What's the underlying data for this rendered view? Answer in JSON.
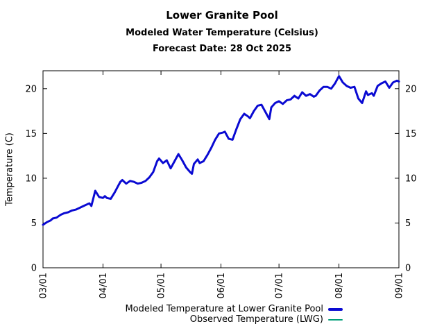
{
  "header": {
    "title": "Lower Granite Pool",
    "subtitle": "Modeled Water Temperature (Celsius)",
    "forecast": "Forecast Date: 28 Oct 2025"
  },
  "colors": {
    "modeled_line": "#0a0ad2",
    "observed_line": "#009e78",
    "axis": "#000000",
    "background": "#ffffff"
  },
  "legend": [
    {
      "label": "Modeled Temperature at Lower Granite Pool",
      "color": "#0a0ad2",
      "style": "thick"
    },
    {
      "label": "Observed Temperature (LWG)",
      "color": "#009e78",
      "style": "thin"
    }
  ],
  "chart_data": {
    "type": "line",
    "title": "Lower Granite Pool",
    "subtitle": "Modeled Water Temperature (Celsius)",
    "annotation": "Forecast Date: 28 Oct 2025",
    "xlabel": "",
    "ylabel": "Temperature (C)",
    "ylim": [
      0,
      22
    ],
    "y_ticks": [
      0,
      5,
      10,
      15,
      20
    ],
    "x_tick_labels": [
      "03/01",
      "04/01",
      "05/01",
      "06/01",
      "07/01",
      "08/01",
      "09/01"
    ],
    "grid": false,
    "legend_position": "bottom-right",
    "dates": [
      "03/01",
      "03/03",
      "03/05",
      "03/06",
      "03/08",
      "03/10",
      "03/12",
      "03/14",
      "03/16",
      "03/18",
      "03/20",
      "03/22",
      "03/24",
      "03/25",
      "03/26",
      "03/28",
      "03/30",
      "04/01",
      "04/02",
      "04/03",
      "04/05",
      "04/07",
      "04/09",
      "04/10",
      "04/11",
      "04/13",
      "04/15",
      "04/17",
      "04/19",
      "04/21",
      "04/23",
      "04/25",
      "04/27",
      "04/28",
      "04/29",
      "04/30",
      "05/02",
      "05/04",
      "05/06",
      "05/08",
      "05/10",
      "05/12",
      "05/14",
      "05/16",
      "05/17",
      "05/18",
      "05/20",
      "05/21",
      "05/23",
      "05/25",
      "05/27",
      "05/29",
      "05/31",
      "06/02",
      "06/03",
      "06/05",
      "06/07",
      "06/09",
      "06/11",
      "06/13",
      "06/15",
      "06/16",
      "06/18",
      "06/20",
      "06/22",
      "06/24",
      "06/26",
      "06/27",
      "06/29",
      "07/01",
      "07/03",
      "07/05",
      "07/07",
      "07/09",
      "07/11",
      "07/13",
      "07/15",
      "07/17",
      "07/19",
      "07/20",
      "07/22",
      "07/24",
      "07/26",
      "07/28",
      "07/30",
      "08/01",
      "08/03",
      "08/05",
      "08/07",
      "08/09",
      "08/11",
      "08/13",
      "08/15",
      "08/16",
      "08/18",
      "08/19",
      "08/21",
      "08/23",
      "08/25",
      "08/27",
      "08/29",
      "08/31",
      "09/01"
    ],
    "series": [
      {
        "id": "modeled",
        "name": "Modeled Temperature at Lower Granite Pool",
        "color": "#0a0ad2",
        "width": 3,
        "values": [
          4.8,
          5.1,
          5.3,
          5.5,
          5.6,
          5.9,
          6.1,
          6.2,
          6.4,
          6.5,
          6.7,
          6.9,
          7.1,
          7.2,
          6.9,
          8.6,
          7.9,
          7.8,
          8.0,
          7.8,
          7.7,
          8.4,
          9.2,
          9.6,
          9.8,
          9.4,
          9.7,
          9.6,
          9.4,
          9.5,
          9.7,
          10.1,
          10.7,
          11.3,
          11.9,
          12.2,
          11.7,
          12.0,
          11.1,
          11.9,
          12.7,
          12.0,
          11.2,
          10.7,
          10.5,
          11.6,
          12.1,
          11.7,
          11.9,
          12.6,
          13.4,
          14.3,
          15.0,
          15.1,
          15.2,
          14.4,
          14.3,
          15.5,
          16.6,
          17.2,
          16.9,
          16.7,
          17.5,
          18.1,
          18.2,
          17.4,
          16.6,
          17.9,
          18.4,
          18.6,
          18.3,
          18.7,
          18.8,
          19.2,
          18.9,
          19.6,
          19.2,
          19.4,
          19.1,
          19.2,
          19.8,
          20.2,
          20.2,
          20.0,
          20.6,
          21.4,
          20.7,
          20.3,
          20.1,
          20.2,
          18.9,
          18.4,
          19.7,
          19.3,
          19.5,
          19.2,
          20.3,
          20.6,
          20.8,
          20.1,
          20.7,
          20.9,
          20.8
        ]
      },
      {
        "id": "observed",
        "name": "Observed Temperature (LWG)",
        "color": "#009e78",
        "width": 1.5,
        "values": [
          4.8,
          5.1,
          5.3,
          5.5,
          5.6,
          5.9,
          6.1,
          6.2,
          6.4,
          6.5,
          6.7,
          6.9,
          7.1,
          7.2,
          6.9,
          8.6,
          7.9,
          7.8,
          8.0,
          7.8,
          7.7,
          8.4,
          9.2,
          9.6,
          9.8,
          9.4,
          9.7,
          9.6,
          9.4,
          9.5,
          9.7,
          10.1,
          10.7,
          11.3,
          11.9,
          12.2,
          11.7,
          12.0,
          11.1,
          11.9,
          12.7,
          12.0,
          11.2,
          10.7,
          10.5,
          11.6,
          12.1,
          11.7,
          11.9,
          12.6,
          13.4,
          14.3,
          15.0,
          15.1,
          15.2,
          14.4,
          14.3,
          15.5,
          16.6,
          17.2,
          16.9,
          16.7,
          17.5,
          18.1,
          18.2,
          17.4,
          16.6,
          17.9,
          18.4,
          18.6,
          18.3,
          18.7,
          18.8,
          19.2,
          18.9,
          19.6,
          19.2,
          19.4,
          19.1,
          19.2,
          19.8,
          20.2,
          20.2,
          20.0,
          20.6,
          21.4,
          20.7,
          20.3,
          20.1,
          20.2,
          18.9,
          18.4,
          19.7,
          19.3,
          19.5,
          19.2,
          20.3,
          20.6,
          20.8,
          20.1,
          20.7,
          20.9,
          20.8
        ]
      }
    ]
  }
}
